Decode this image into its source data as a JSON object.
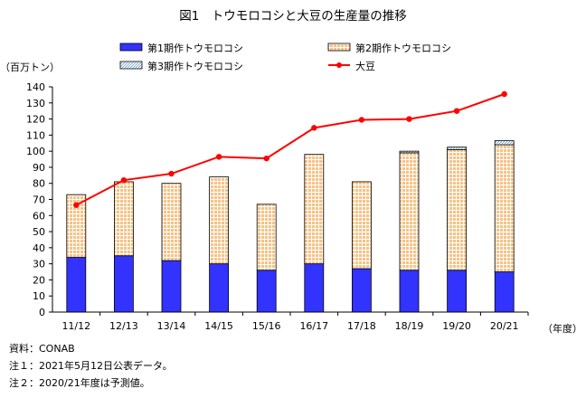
{
  "chart_data": {
    "type": "bar",
    "title": "図1　トウモロコシと大豆の生産量の推移",
    "ylabel": "（百万トン）",
    "xlabel": "（年度）",
    "ylim": [
      0,
      140
    ],
    "ystep": 10,
    "grid": false,
    "legend_position": "top",
    "categories": [
      "11/12",
      "12/13",
      "13/14",
      "14/15",
      "15/16",
      "16/17",
      "17/18",
      "18/19",
      "19/20",
      "20/21"
    ],
    "series": [
      {
        "name": "第1期作トウモロコシ",
        "kind": "stacked-bar",
        "color": "#3333ff",
        "pattern": "solid",
        "values": [
          34,
          35,
          32,
          30,
          26,
          30,
          27,
          26,
          26,
          25
        ]
      },
      {
        "name": "第2期作トウモロコシ",
        "kind": "stacked-bar",
        "color": "#f4b56b",
        "pattern": "grid",
        "values": [
          39,
          46,
          48,
          54,
          41,
          68,
          54,
          73,
          75,
          79
        ]
      },
      {
        "name": "第3期作トウモロコシ",
        "kind": "stacked-bar",
        "color": "#7fb0d8",
        "pattern": "diagonal",
        "values": [
          0,
          0,
          0,
          0,
          0,
          0,
          0,
          1,
          1.5,
          2.5
        ]
      },
      {
        "name": "大豆",
        "kind": "line",
        "color": "#ff0000",
        "values": [
          66.5,
          82,
          86,
          96.5,
          95.5,
          114.5,
          119.5,
          120,
          125,
          135.5
        ]
      }
    ]
  },
  "notes": [
    "資料：CONAB",
    "注１：2021年5月12日公表データ。",
    "注２：2020/21年度は予測値。"
  ]
}
